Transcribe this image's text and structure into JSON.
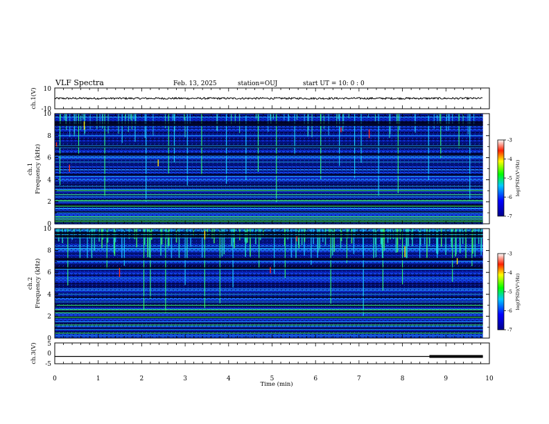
{
  "header": {
    "title": "VLF Spectra",
    "date": "Feb. 13, 2025",
    "station": "station=OUJ",
    "start": "start  UT =   10: 0  : 0"
  },
  "chart_data": {
    "type": "heatmap",
    "x": {
      "label": "Time  (min)",
      "range": [
        0,
        10
      ],
      "data_end": 9.85,
      "ticks": [
        "0",
        "1",
        "2",
        "3",
        "4",
        "5",
        "6",
        "7",
        "8",
        "9",
        "10"
      ]
    },
    "panels": [
      {
        "id": "ch1_waveform",
        "kind": "waveform",
        "ylabel": "ch.1(V)",
        "ylim": [
          -10,
          10
        ],
        "yticks": [
          "10",
          "-10"
        ],
        "level": 0,
        "noise_amp": 0.6
      },
      {
        "id": "ch1_spectrogram",
        "kind": "spectrogram",
        "ylabel_line1": "ch.1",
        "ylabel_line2": "Frequency  (kHz)",
        "ylim": [
          0,
          10
        ],
        "yticks": [
          "0",
          "2",
          "4",
          "6",
          "8",
          "10"
        ],
        "lines_khz": [
          0.2,
          0.35,
          0.5,
          0.65,
          1.0,
          1.4,
          1.6,
          2.0,
          2.1,
          2.45,
          2.65,
          3.0,
          3.1,
          3.4,
          4.3,
          5.6,
          6.0,
          7.1,
          8.0
        ],
        "lines_green_khz": [
          0.2,
          0.35,
          0.5,
          0.65,
          1.6,
          2.1,
          2.65,
          3.0
        ],
        "spikes_min": [
          0.12,
          0.55,
          1.15,
          1.55,
          1.85,
          2.1,
          2.62,
          2.75,
          3.05,
          3.38,
          3.95,
          4.4,
          4.68,
          5.1,
          5.52,
          6.12,
          6.55,
          6.9,
          7.05,
          7.45,
          7.9,
          8.6,
          8.88,
          9.3,
          9.55
        ],
        "colorbar": {
          "label": "log(PSD)(V²/Hz)",
          "ticks": [
            "-3",
            "-4",
            "-5",
            "-6",
            "-7"
          ],
          "range": [
            -7,
            -3
          ]
        }
      },
      {
        "id": "ch2_spectrogram",
        "kind": "spectrogram",
        "ylabel_line1": "ch.2",
        "ylabel_line2": "Frequency  (kHz)",
        "ylim": [
          0,
          10
        ],
        "yticks": [
          "0",
          "2",
          "4",
          "6",
          "8",
          "10"
        ],
        "lines_khz": [
          0.2,
          0.45,
          0.8,
          1.2,
          1.5,
          1.9,
          2.3,
          2.6,
          3.0,
          3.3,
          4.0,
          4.5,
          5.5,
          6.3,
          7.0,
          8.2
        ],
        "lines_green_khz": [
          0.45,
          1.2,
          1.9,
          2.3,
          2.6,
          3.0
        ],
        "spikes_min": [
          0.3,
          0.75,
          1.2,
          1.6,
          2.05,
          2.2,
          2.55,
          3.0,
          3.45,
          3.8,
          4.1,
          4.7,
          5.05,
          5.3,
          5.9,
          6.35,
          6.72,
          7.1,
          7.55,
          8.0,
          8.4,
          8.8,
          9.15,
          9.6
        ],
        "colorbar": {
          "label": "log(PSD)(V²/Hz)",
          "ticks": [
            "-3",
            "-4",
            "-5",
            "-6",
            "-7"
          ],
          "range": [
            -7,
            -3
          ]
        }
      },
      {
        "id": "ch3_waveform",
        "kind": "waveform",
        "ylabel": "ch.3(V)",
        "ylim": [
          -5,
          5
        ],
        "yticks": [
          "5",
          "0",
          "-5"
        ],
        "level": -1.5,
        "thick_from_min": 8.62
      }
    ]
  }
}
